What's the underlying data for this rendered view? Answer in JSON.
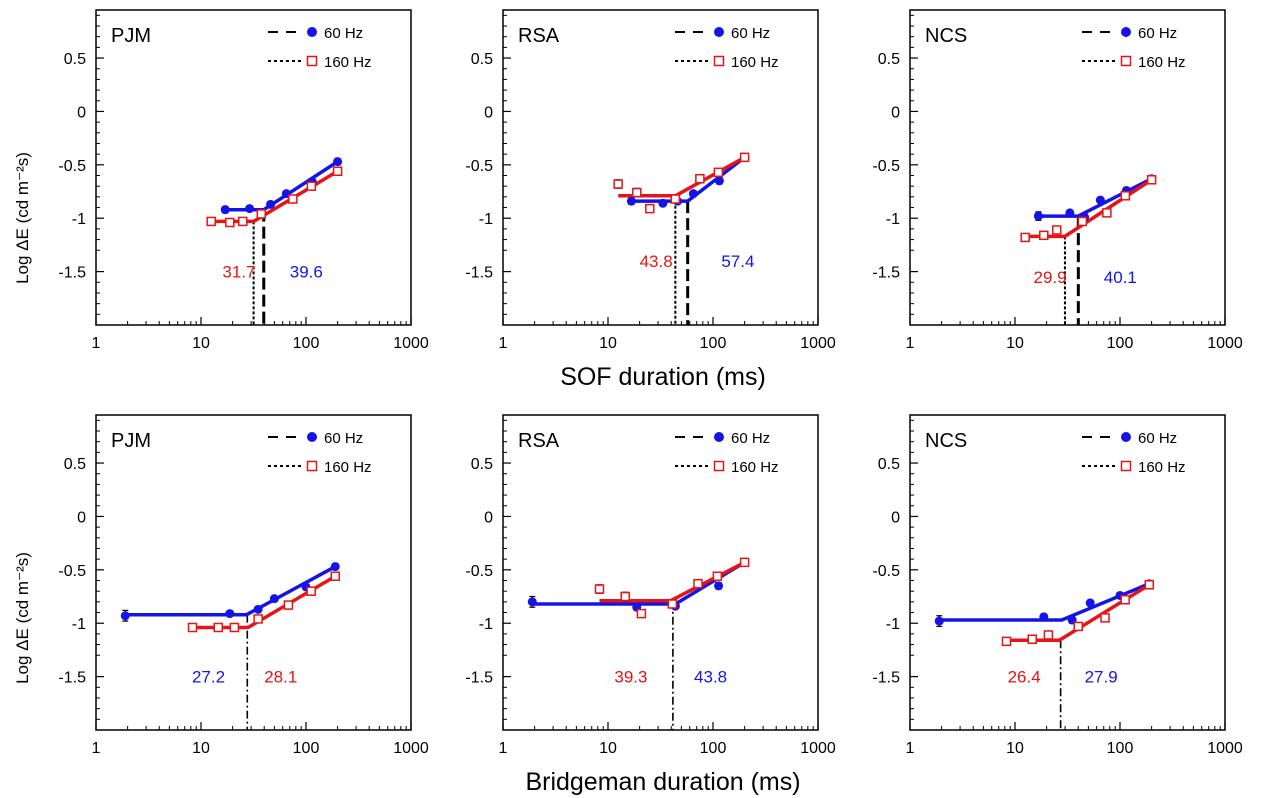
{
  "figure": {
    "xlabels": [
      "SOF duration (ms)",
      "Bridgeman duration (ms)"
    ],
    "ylabel": "Log ΔE (cd m⁻²s)"
  },
  "colors": {
    "hz60": "#1414e6",
    "hz160": "#e61414",
    "guide": "#000000"
  },
  "chart_data": [
    {
      "type": "scatter",
      "row": 0,
      "col": 0,
      "title": "PJM",
      "xscale": "log",
      "xlim": [
        1,
        1000
      ],
      "ylim": [
        -2.0,
        0.95
      ],
      "xticks": [
        1,
        10,
        100,
        1000
      ],
      "xticklabels": [
        "1",
        "10",
        "100",
        "1000"
      ],
      "yticks": [
        0.5,
        0,
        -0.5,
        -1,
        -1.5
      ],
      "yticklabels": [
        "0.5",
        "0",
        "-0.5",
        "-1",
        "-1.5"
      ],
      "legend": [
        "60 Hz",
        "160 Hz"
      ],
      "legend_position": "top-right",
      "series": [
        {
          "name": "60 Hz",
          "x": [
            17,
            29,
            46,
            65,
            115,
            200
          ],
          "y": [
            -0.92,
            -0.91,
            -0.87,
            -0.77,
            -0.66,
            -0.47
          ],
          "err": [
            0.03,
            0.02,
            0.02,
            0.02,
            0.02,
            0.03
          ],
          "fit_x": [
            17,
            39.6,
            200
          ],
          "fit_y": [
            -0.92,
            -0.92,
            -0.47
          ]
        },
        {
          "name": "160 Hz",
          "x": [
            12.5,
            18.8,
            25,
            37.5,
            75,
            112.5,
            200
          ],
          "y": [
            -1.03,
            -1.04,
            -1.03,
            -0.96,
            -0.82,
            -0.7,
            -0.56
          ],
          "err": [
            0.02,
            0.02,
            0.02,
            0.02,
            0.02,
            0.02,
            0.02
          ],
          "fit_x": [
            12.5,
            31.7,
            200
          ],
          "fit_y": [
            -1.03,
            -1.03,
            -0.56
          ]
        }
      ],
      "breakpoints": [
        {
          "x": 31.7,
          "label": "31.7",
          "series": "160 Hz",
          "label_x": 16,
          "label_y": -1.5
        },
        {
          "x": 39.6,
          "label": "39.6",
          "series": "60 Hz",
          "label_x": 70,
          "label_y": -1.5
        }
      ]
    },
    {
      "type": "scatter",
      "row": 0,
      "col": 1,
      "title": "RSA",
      "xscale": "log",
      "xlim": [
        1,
        1000
      ],
      "ylim": [
        -2.0,
        0.95
      ],
      "xticks": [
        1,
        10,
        100,
        1000
      ],
      "xticklabels": [
        "1",
        "10",
        "100",
        "1000"
      ],
      "yticks": [
        0.5,
        0,
        -0.5,
        -1,
        -1.5
      ],
      "yticklabels": [
        "0.5",
        "0",
        "-0.5",
        "-1",
        "-1.5"
      ],
      "legend": [
        "60 Hz",
        "160 Hz"
      ],
      "legend_position": "top-right",
      "series": [
        {
          "name": "60 Hz",
          "x": [
            16.7,
            33.3,
            46,
            65,
            115,
            200
          ],
          "y": [
            -0.84,
            -0.86,
            -0.84,
            -0.77,
            -0.65,
            -0.43
          ],
          "err": [
            0.03,
            0.02,
            0.02,
            0.02,
            0.03,
            0.03
          ],
          "fit_x": [
            16.7,
            57.4,
            200
          ],
          "fit_y": [
            -0.84,
            -0.84,
            -0.43
          ]
        },
        {
          "name": "160 Hz",
          "x": [
            12.5,
            18.8,
            25,
            43.8,
            75,
            112.5,
            200
          ],
          "y": [
            -0.68,
            -0.76,
            -0.91,
            -0.82,
            -0.63,
            -0.57,
            -0.43
          ],
          "err": [
            0.04,
            0.04,
            0.03,
            0.03,
            0.02,
            0.02,
            0.03
          ],
          "fit_x": [
            12.5,
            43.8,
            200
          ],
          "fit_y": [
            -0.79,
            -0.79,
            -0.43
          ]
        }
      ],
      "breakpoints": [
        {
          "x": 43.8,
          "label": "43.8",
          "series": "160 Hz",
          "label_x": 20,
          "label_y": -1.4
        },
        {
          "x": 57.4,
          "label": "57.4",
          "series": "60 Hz",
          "label_x": 120,
          "label_y": -1.4
        }
      ]
    },
    {
      "type": "scatter",
      "row": 0,
      "col": 2,
      "title": "NCS",
      "xscale": "log",
      "xlim": [
        1,
        1000
      ],
      "ylim": [
        -2.0,
        0.95
      ],
      "xticks": [
        1,
        10,
        100,
        1000
      ],
      "xticklabels": [
        "1",
        "10",
        "100",
        "1000"
      ],
      "yticks": [
        0.5,
        0,
        -0.5,
        -1,
        -1.5
      ],
      "yticklabels": [
        "0.5",
        "0",
        "-0.5",
        "-1",
        "-1.5"
      ],
      "legend": [
        "60 Hz",
        "160 Hz"
      ],
      "legend_position": "top-right",
      "series": [
        {
          "name": "60 Hz",
          "x": [
            16.7,
            33.3,
            46,
            65,
            115,
            200
          ],
          "y": [
            -0.98,
            -0.95,
            -0.99,
            -0.83,
            -0.74,
            -0.63
          ],
          "err": [
            0.04,
            0.02,
            0.03,
            0.02,
            0.02,
            0.02
          ],
          "fit_x": [
            16.7,
            40.1,
            200
          ],
          "fit_y": [
            -0.98,
            -0.98,
            -0.63
          ]
        },
        {
          "name": "160 Hz",
          "x": [
            12.5,
            18.8,
            25,
            43.8,
            75,
            112.5,
            200
          ],
          "y": [
            -1.18,
            -1.16,
            -1.11,
            -1.03,
            -0.95,
            -0.79,
            -0.64
          ],
          "err": [
            0.02,
            0.02,
            0.02,
            0.02,
            0.02,
            0.02,
            0.02
          ],
          "fit_x": [
            12.5,
            29.9,
            200
          ],
          "fit_y": [
            -1.17,
            -1.17,
            -0.64
          ]
        }
      ],
      "breakpoints": [
        {
          "x": 29.9,
          "label": "29.9",
          "series": "160 Hz",
          "label_x": 15,
          "label_y": -1.55
        },
        {
          "x": 40.1,
          "label": "40.1",
          "series": "60 Hz",
          "label_x": 70,
          "label_y": -1.55
        }
      ]
    },
    {
      "type": "scatter",
      "row": 1,
      "col": 0,
      "title": "PJM",
      "xscale": "log",
      "xlim": [
        1,
        1000
      ],
      "ylim": [
        -2.0,
        0.95
      ],
      "xticks": [
        1,
        10,
        100,
        1000
      ],
      "xticklabels": [
        "1",
        "10",
        "100",
        "1000"
      ],
      "yticks": [
        0.5,
        0,
        -0.5,
        -1,
        -1.5
      ],
      "yticklabels": [
        "0.5",
        "0",
        "-0.5",
        "-1",
        "-1.5"
      ],
      "legend": [
        "60 Hz",
        "160 Hz"
      ],
      "legend_position": "top-right",
      "series": [
        {
          "name": "60 Hz",
          "x": [
            1.9,
            18.8,
            35,
            50,
            100,
            190
          ],
          "y": [
            -0.93,
            -0.91,
            -0.87,
            -0.77,
            -0.66,
            -0.47
          ],
          "err": [
            0.05,
            0.02,
            0.02,
            0.02,
            0.02,
            0.03
          ],
          "fit_x": [
            1.9,
            27.2,
            190
          ],
          "fit_y": [
            -0.92,
            -0.92,
            -0.47
          ]
        },
        {
          "name": "160 Hz",
          "x": [
            8.3,
            14.6,
            20.8,
            35,
            68,
            112,
            190
          ],
          "y": [
            -1.04,
            -1.04,
            -1.04,
            -0.96,
            -0.83,
            -0.7,
            -0.56
          ],
          "err": [
            0.02,
            0.02,
            0.02,
            0.02,
            0.02,
            0.02,
            0.02
          ],
          "fit_x": [
            8.3,
            28.1,
            190
          ],
          "fit_y": [
            -1.04,
            -1.04,
            -0.56
          ]
        }
      ],
      "breakpoints": [
        {
          "x": 27.6,
          "label": "27.2",
          "series": "60 Hz",
          "label_x": 8.2,
          "label_y": -1.5
        },
        {
          "x": 27.6,
          "label": "28.1",
          "series": "160 Hz",
          "label_x": 40,
          "label_y": -1.5
        }
      ]
    },
    {
      "type": "scatter",
      "row": 1,
      "col": 1,
      "title": "RSA",
      "xscale": "log",
      "xlim": [
        1,
        1000
      ],
      "ylim": [
        -2.0,
        0.95
      ],
      "xticks": [
        1,
        10,
        100,
        1000
      ],
      "xticklabels": [
        "1",
        "10",
        "100",
        "1000"
      ],
      "yticks": [
        0.5,
        0,
        -0.5,
        -1,
        -1.5
      ],
      "yticklabels": [
        "0.5",
        "0",
        "-0.5",
        "-1",
        "-1.5"
      ],
      "legend": [
        "60 Hz",
        "160 Hz"
      ],
      "legend_position": "top-right",
      "series": [
        {
          "name": "60 Hz",
          "x": [
            1.9,
            18.8,
            43.8,
            113,
            200
          ],
          "y": [
            -0.8,
            -0.85,
            -0.84,
            -0.65,
            -0.43
          ],
          "err": [
            0.05,
            0.03,
            0.02,
            0.03,
            0.03
          ],
          "fit_x": [
            1.9,
            43.8,
            200
          ],
          "fit_y": [
            -0.82,
            -0.82,
            -0.43
          ]
        },
        {
          "name": "160 Hz",
          "x": [
            8.3,
            14.6,
            20.8,
            41,
            72,
            110,
            200
          ],
          "y": [
            -0.68,
            -0.75,
            -0.91,
            -0.82,
            -0.63,
            -0.56,
            -0.43
          ],
          "err": [
            0.04,
            0.04,
            0.03,
            0.03,
            0.02,
            0.02,
            0.03
          ],
          "fit_x": [
            8.3,
            39.3,
            200
          ],
          "fit_y": [
            -0.79,
            -0.79,
            -0.43
          ]
        }
      ],
      "breakpoints": [
        {
          "x": 41.5,
          "label": "39.3",
          "series": "160 Hz",
          "label_x": 11.5,
          "label_y": -1.5
        },
        {
          "x": 41.5,
          "label": "43.8",
          "series": "60 Hz",
          "label_x": 66,
          "label_y": -1.5
        }
      ]
    },
    {
      "type": "scatter",
      "row": 1,
      "col": 2,
      "title": "NCS",
      "xscale": "log",
      "xlim": [
        1,
        1000
      ],
      "ylim": [
        -2.0,
        0.95
      ],
      "xticks": [
        1,
        10,
        100,
        1000
      ],
      "xticklabels": [
        "1",
        "10",
        "100",
        "1000"
      ],
      "yticks": [
        0.5,
        0,
        -0.5,
        -1,
        -1.5
      ],
      "yticklabels": [
        "0.5",
        "0",
        "-0.5",
        "-1",
        "-1.5"
      ],
      "legend": [
        "60 Hz",
        "160 Hz"
      ],
      "legend_position": "top-right",
      "series": [
        {
          "name": "60 Hz",
          "x": [
            1.9,
            18.8,
            35,
            52,
            100,
            190
          ],
          "y": [
            -0.98,
            -0.94,
            -0.97,
            -0.81,
            -0.74,
            -0.63
          ],
          "err": [
            0.05,
            0.02,
            0.03,
            0.02,
            0.02,
            0.02
          ],
          "fit_x": [
            1.9,
            27.9,
            190
          ],
          "fit_y": [
            -0.97,
            -0.97,
            -0.63
          ]
        },
        {
          "name": "160 Hz",
          "x": [
            8.3,
            14.6,
            20.8,
            40,
            72,
            112,
            190
          ],
          "y": [
            -1.17,
            -1.15,
            -1.11,
            -1.03,
            -0.95,
            -0.78,
            -0.64
          ],
          "err": [
            0.02,
            0.02,
            0.02,
            0.02,
            0.02,
            0.02,
            0.02
          ],
          "fit_x": [
            8.3,
            26.4,
            190
          ],
          "fit_y": [
            -1.16,
            -1.16,
            -0.64
          ]
        }
      ],
      "breakpoints": [
        {
          "x": 27.2,
          "label": "26.4",
          "series": "160 Hz",
          "label_x": 8.5,
          "label_y": -1.5
        },
        {
          "x": 27.2,
          "label": "27.9",
          "series": "60 Hz",
          "label_x": 46,
          "label_y": -1.5
        }
      ]
    }
  ]
}
